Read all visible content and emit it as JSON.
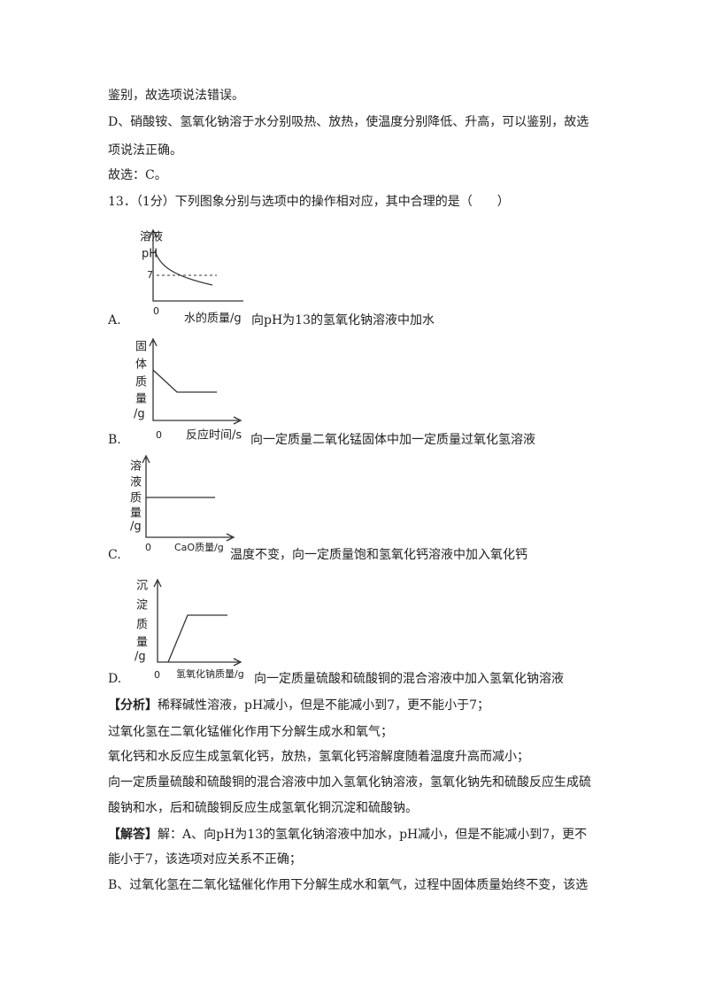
{
  "lines_before": [
    "鉴别，故选项说法错误。",
    "D、硝酸铵、氢氧化钠溶于水分别吸热、放热，使温度分别降低、升高，可以鉴别，故选",
    "项说法正确。",
    "故选：C。"
  ],
  "question": {
    "stem": "13．（1分）下列图象分别与选项中的操作相对应，其中合理的是（　　）",
    "options": [
      {
        "letter": "A.",
        "text": "向pH为13的氢氧化钠溶液中加水",
        "graph": {
          "y_label": [
            "溶液",
            "pH"
          ],
          "tick": "7",
          "origin": "0",
          "x_label": "水的质量/g"
        }
      },
      {
        "letter": "B.",
        "text": "向一定质量二氧化锰固体中加一定质量过氧化氢溶液",
        "graph": {
          "y_label": [
            "固",
            "体",
            "质",
            "量",
            "/g"
          ],
          "origin": "0",
          "x_label": "反应时间/s"
        }
      },
      {
        "letter": "C.",
        "text": "温度不变，向一定质量饱和氢氧化钙溶液中加入氧化钙",
        "graph": {
          "y_label": [
            "溶",
            "液",
            "质",
            "量",
            "/g"
          ],
          "origin": "0",
          "x_label": "CaO质量/g"
        }
      },
      {
        "letter": "D.",
        "text": "向一定质量硫酸和硫酸铜的混合溶液中加入氢氧化钠溶液",
        "graph": {
          "y_label": [
            "沉",
            "淀",
            "质",
            "量",
            "/g"
          ],
          "origin": "0",
          "x_label": "氢氧化钠质量/g"
        }
      }
    ]
  },
  "analysis": {
    "label": "【分析】",
    "lines": [
      "稀释碱性溶液，pH减小，但是不能减小到7，更不能小于7；",
      "过氧化氢在二氧化锰催化作用下分解生成水和氧气；",
      "氧化钙和水反应生成氢氧化钙，放热，氢氧化钙溶解度随着温度升高而减小；",
      "向一定质量硫酸和硫酸铜的混合溶液中加入氢氧化钠溶液，氢氧化钠先和硫酸反应生成硫",
      "酸钠和水，后和硫酸铜反应生成氢氧化铜沉淀和硫酸钠。"
    ]
  },
  "solution": {
    "label": "【解答】",
    "lines": [
      "解：A、向pH为13的氢氧化钠溶液中加水，pH减小，但是不能减小到7，更不",
      "能小于7，该选项对应关系不正确；",
      "B、过氧化氢在二氧化锰催化作用下分解生成水和氧气，过程中固体质量始终不变，该选"
    ]
  }
}
